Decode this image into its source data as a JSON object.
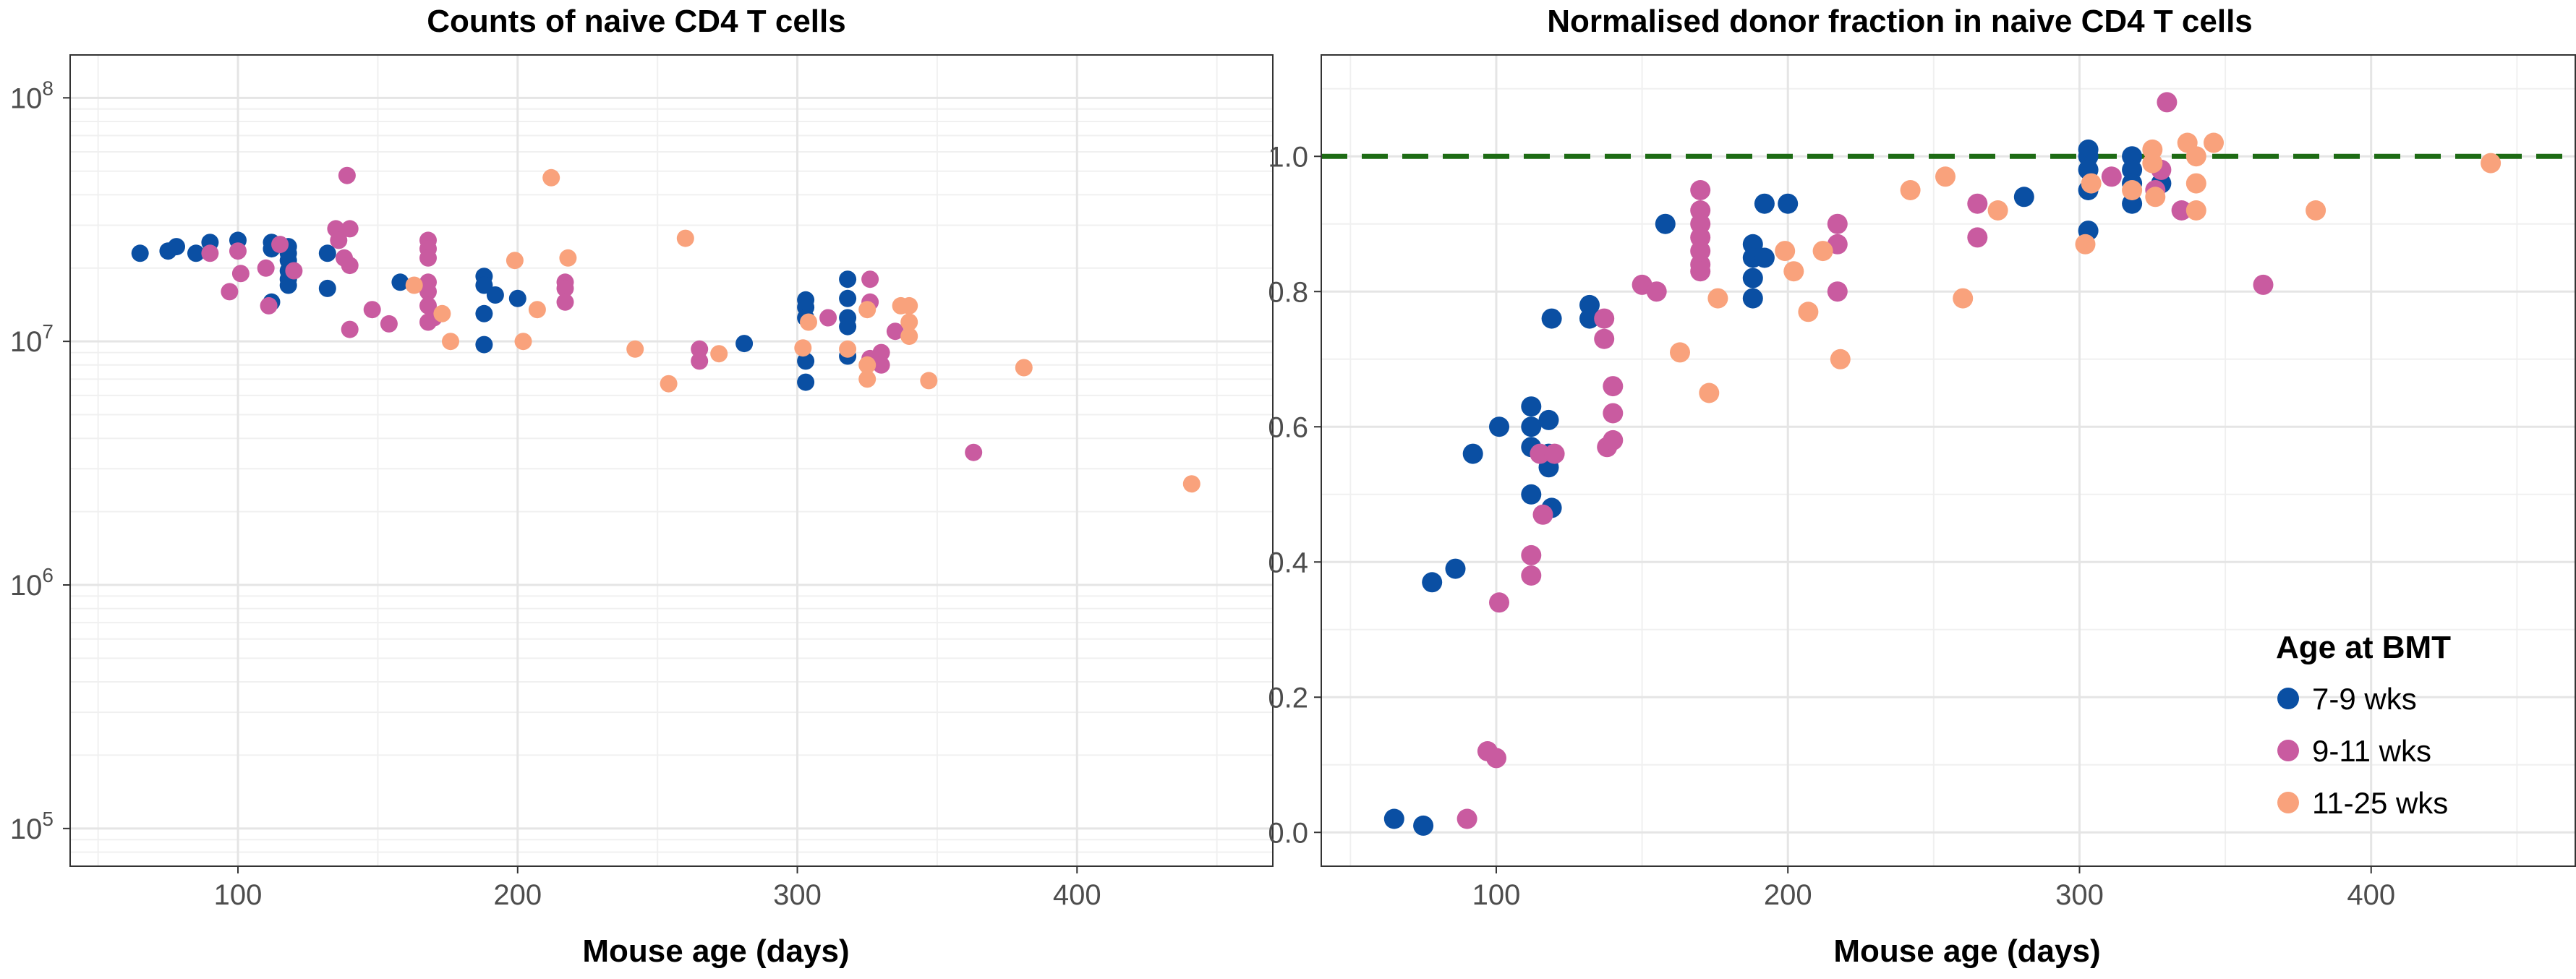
{
  "colors": {
    "series_7_9": "#0a4fa3",
    "series_9_11": "#c95ba0",
    "series_11_25": "#f9a27c",
    "reference_line": "#1d6b14",
    "grid_major": "#e5e5e5",
    "grid_minor": "#f0f0f0",
    "panel_border": "#333333"
  },
  "legend": {
    "title": "Age at BMT",
    "placement": "bottom-right of right panel",
    "entries": [
      "7-9 wks",
      "9-11 wks",
      "11-25 wks"
    ]
  },
  "chart_data": [
    {
      "type": "scatter",
      "title": "Counts of naive CD4 T cells",
      "xlabel": "Mouse age (days)",
      "ylabel": "",
      "xlim": [
        40,
        470
      ],
      "x_ticks": [
        "100",
        "200",
        "300",
        "400"
      ],
      "y_scale": "log10",
      "ylim": [
        70000,
        150000000
      ],
      "y_ticks": [
        {
          "base": "10",
          "exp": "5"
        },
        {
          "base": "10",
          "exp": "6"
        },
        {
          "base": "10",
          "exp": "7"
        },
        {
          "base": "10",
          "exp": "8"
        }
      ],
      "grid": true,
      "series": [
        {
          "name": "7-9 wks",
          "points": [
            [
              65,
              23000000
            ],
            [
              75,
              23500000
            ],
            [
              78,
              24500000
            ],
            [
              85,
              23000000
            ],
            [
              90,
              25500000
            ],
            [
              100,
              26000000
            ],
            [
              112,
              25500000
            ],
            [
              112,
              24000000
            ],
            [
              112,
              14500000
            ],
            [
              118,
              24500000
            ],
            [
              118,
              23000000
            ],
            [
              118,
              21500000
            ],
            [
              118,
              19500000
            ],
            [
              118,
              18000000
            ],
            [
              118,
              17000000
            ],
            [
              132,
              23000000
            ],
            [
              132,
              16500000
            ],
            [
              158,
              17500000
            ],
            [
              188,
              18500000
            ],
            [
              188,
              17000000
            ],
            [
              188,
              13000000
            ],
            [
              188,
              9700000
            ],
            [
              192,
              15500000
            ],
            [
              200,
              15000000
            ],
            [
              281,
              9800000
            ],
            [
              303,
              14800000
            ],
            [
              303,
              13800000
            ],
            [
              303,
              12500000
            ],
            [
              303,
              8300000
            ],
            [
              303,
              6800000
            ],
            [
              318,
              18000000
            ],
            [
              318,
              15000000
            ],
            [
              318,
              12500000
            ],
            [
              318,
              11500000
            ],
            [
              318,
              8700000
            ]
          ]
        },
        {
          "name": "9-11 wks",
          "points": [
            [
              90,
              23000000
            ],
            [
              97,
              16000000
            ],
            [
              100,
              23500000
            ],
            [
              101,
              19000000
            ],
            [
              110,
              20000000
            ],
            [
              111,
              14000000
            ],
            [
              115,
              25000000
            ],
            [
              120,
              19500000
            ],
            [
              135,
              29000000
            ],
            [
              136,
              26000000
            ],
            [
              138,
              22000000
            ],
            [
              139,
              48000000
            ],
            [
              140,
              29000000
            ],
            [
              140,
              20500000
            ],
            [
              140,
              11200000
            ],
            [
              148,
              13500000
            ],
            [
              154,
              11800000
            ],
            [
              168,
              26000000
            ],
            [
              168,
              24000000
            ],
            [
              168,
              22000000
            ],
            [
              168,
              17500000
            ],
            [
              168,
              16000000
            ],
            [
              168,
              14000000
            ],
            [
              168,
              12000000
            ],
            [
              170,
              12500000
            ],
            [
              217,
              17500000
            ],
            [
              217,
              16500000
            ],
            [
              217,
              14500000
            ],
            [
              265,
              9300000
            ],
            [
              265,
              8300000
            ],
            [
              311,
              12500000
            ],
            [
              326,
              18000000
            ],
            [
              326,
              14500000
            ],
            [
              326,
              8500000
            ],
            [
              330,
              9000000
            ],
            [
              330,
              8000000
            ],
            [
              335,
              11000000
            ],
            [
              363,
              3500000
            ]
          ]
        },
        {
          "name": "11-25 wks",
          "points": [
            [
              163,
              17000000
            ],
            [
              173,
              13000000
            ],
            [
              176,
              10000000
            ],
            [
              199,
              21500000
            ],
            [
              202,
              10000000
            ],
            [
              207,
              13500000
            ],
            [
              212,
              47000000
            ],
            [
              218,
              22000000
            ],
            [
              242,
              9300000
            ],
            [
              254,
              6700000
            ],
            [
              260,
              26500000
            ],
            [
              272,
              8900000
            ],
            [
              302,
              9400000
            ],
            [
              304,
              12000000
            ],
            [
              318,
              9300000
            ],
            [
              325,
              13500000
            ],
            [
              325,
              8000000
            ],
            [
              325,
              7000000
            ],
            [
              337,
              14000000
            ],
            [
              340,
              14000000
            ],
            [
              340,
              12000000
            ],
            [
              340,
              10500000
            ],
            [
              347,
              6900000
            ],
            [
              381,
              7800000
            ],
            [
              441,
              2600000
            ]
          ]
        }
      ]
    },
    {
      "type": "scatter",
      "title": "Normalised donor fraction in naive CD4 T cells",
      "xlabel": "Mouse age (days)",
      "ylabel": "",
      "xlim": [
        40,
        470
      ],
      "x_ticks": [
        "100",
        "200",
        "300",
        "400"
      ],
      "ylim": [
        -0.05,
        1.15
      ],
      "y_ticks": [
        "0.0",
        "0.2",
        "0.4",
        "0.6",
        "0.8",
        "1.0"
      ],
      "reference_line_y": 1.0,
      "grid": true,
      "series": [
        {
          "name": "7-9 wks",
          "points": [
            [
              65,
              0.02
            ],
            [
              75,
              0.01
            ],
            [
              78,
              0.37
            ],
            [
              86,
              0.39
            ],
            [
              92,
              0.56
            ],
            [
              101,
              0.6
            ],
            [
              112,
              0.63
            ],
            [
              112,
              0.6
            ],
            [
              112,
              0.57
            ],
            [
              112,
              0.5
            ],
            [
              118,
              0.61
            ],
            [
              118,
              0.56
            ],
            [
              118,
              0.54
            ],
            [
              119,
              0.48
            ],
            [
              119,
              0.76
            ],
            [
              132,
              0.78
            ],
            [
              132,
              0.76
            ],
            [
              158,
              0.9
            ],
            [
              188,
              0.87
            ],
            [
              188,
              0.85
            ],
            [
              188,
              0.82
            ],
            [
              188,
              0.79
            ],
            [
              192,
              0.93
            ],
            [
              192,
              0.85
            ],
            [
              200,
              0.93
            ],
            [
              281,
              0.94
            ],
            [
              303,
              1.01
            ],
            [
              303,
              1.0
            ],
            [
              303,
              0.98
            ],
            [
              303,
              0.95
            ],
            [
              303,
              0.89
            ],
            [
              318,
              1.0
            ],
            [
              318,
              0.98
            ],
            [
              318,
              0.96
            ],
            [
              318,
              0.93
            ],
            [
              328,
              0.96
            ]
          ]
        },
        {
          "name": "9-11 wks",
          "points": [
            [
              90,
              0.02
            ],
            [
              97,
              0.12
            ],
            [
              100,
              0.11
            ],
            [
              101,
              0.34
            ],
            [
              112,
              0.41
            ],
            [
              112,
              0.38
            ],
            [
              115,
              0.56
            ],
            [
              116,
              0.47
            ],
            [
              120,
              0.56
            ],
            [
              137,
              0.76
            ],
            [
              137,
              0.73
            ],
            [
              138,
              0.57
            ],
            [
              140,
              0.66
            ],
            [
              140,
              0.62
            ],
            [
              140,
              0.58
            ],
            [
              150,
              0.81
            ],
            [
              155,
              0.8
            ],
            [
              170,
              0.95
            ],
            [
              170,
              0.92
            ],
            [
              170,
              0.9
            ],
            [
              170,
              0.88
            ],
            [
              170,
              0.86
            ],
            [
              170,
              0.84
            ],
            [
              170,
              0.83
            ],
            [
              217,
              0.9
            ],
            [
              217,
              0.87
            ],
            [
              217,
              0.8
            ],
            [
              265,
              0.93
            ],
            [
              265,
              0.88
            ],
            [
              311,
              0.97
            ],
            [
              326,
              0.95
            ],
            [
              328,
              0.98
            ],
            [
              330,
              1.08
            ],
            [
              335,
              0.92
            ],
            [
              363,
              0.81
            ]
          ]
        },
        {
          "name": "11-25 wks",
          "points": [
            [
              163,
              0.71
            ],
            [
              173,
              0.65
            ],
            [
              176,
              0.79
            ],
            [
              199,
              0.86
            ],
            [
              202,
              0.83
            ],
            [
              207,
              0.77
            ],
            [
              212,
              0.86
            ],
            [
              218,
              0.7
            ],
            [
              242,
              0.95
            ],
            [
              254,
              0.97
            ],
            [
              260,
              0.79
            ],
            [
              272,
              0.92
            ],
            [
              302,
              0.87
            ],
            [
              304,
              0.96
            ],
            [
              318,
              0.95
            ],
            [
              325,
              1.01
            ],
            [
              325,
              0.99
            ],
            [
              326,
              0.94
            ],
            [
              337,
              1.02
            ],
            [
              340,
              1.0
            ],
            [
              340,
              0.96
            ],
            [
              340,
              0.92
            ],
            [
              346,
              1.02
            ],
            [
              381,
              0.92
            ],
            [
              441,
              0.99
            ]
          ]
        }
      ]
    }
  ]
}
